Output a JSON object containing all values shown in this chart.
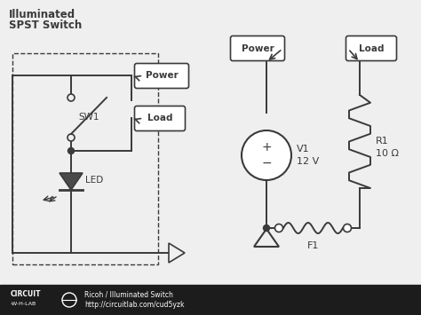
{
  "bg_color": "#efefef",
  "footer_color": "#1c1c1c",
  "line_color": "#3a3a3a",
  "title_line1": "Illuminated",
  "title_line2": "SPST Switch",
  "label_power1": "Power",
  "label_load1": "Load",
  "label_sw1": "SW1",
  "label_led": "LED",
  "label_power2": "Power",
  "label_load2": "Load",
  "label_v1a": "V1",
  "label_v1b": "12 V",
  "label_r1a": "R1",
  "label_r1b": "10 Ω",
  "label_f1": "F1",
  "footer_brand": "CIRCUIT",
  "footer_sub": "-W-H-LAB",
  "footer_info1": "Ricoh / Illuminated Switch",
  "footer_info2": "http://circuitlab.com/cud5yzk"
}
